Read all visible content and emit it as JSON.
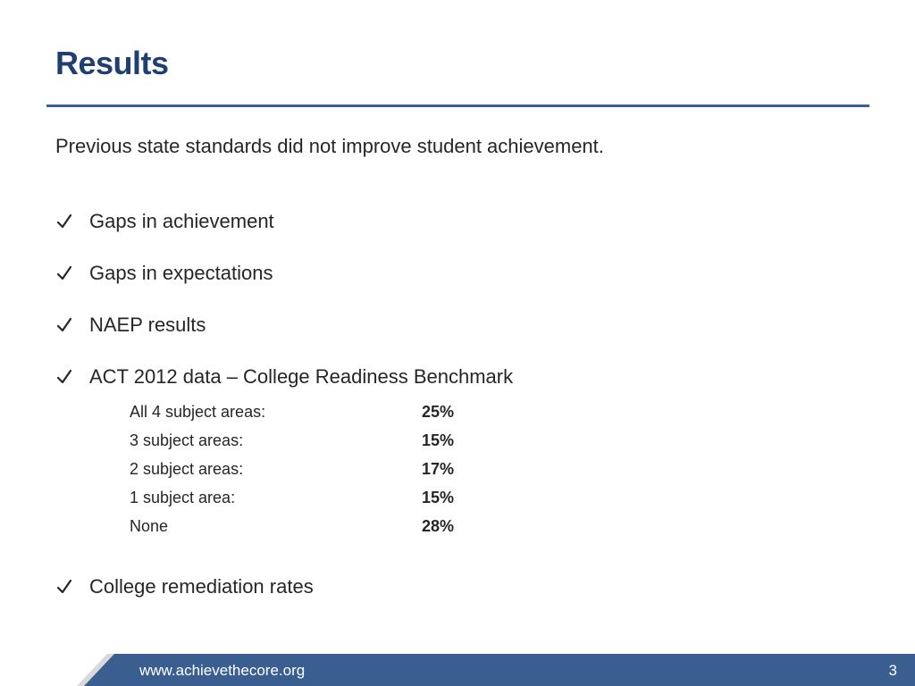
{
  "slide": {
    "title": "Results",
    "intro": "Previous state standards did not improve student achievement."
  },
  "checklist": [
    {
      "label": "Gaps in achievement",
      "icon": "checkmark-icon"
    },
    {
      "label": "Gaps in expectations",
      "icon": "checkmark-icon"
    },
    {
      "label": "NAEP results",
      "icon": "checkmark-icon"
    },
    {
      "label": "ACT 2012 data – College Readiness Benchmark",
      "icon": "checkmark-icon"
    },
    {
      "label": "College remediation rates",
      "icon": "checkmark-icon"
    }
  ],
  "act_data": [
    {
      "label": "All 4 subject areas:",
      "value": "25%"
    },
    {
      "label": "3 subject areas:",
      "value": "15%"
    },
    {
      "label": "2 subject areas:",
      "value": "17%"
    },
    {
      "label": "1 subject area:",
      "value": "15%"
    },
    {
      "label": "None",
      "value": "28%"
    }
  ],
  "footer": {
    "url": "www.achievethecore.org",
    "page_number": "3"
  },
  "colors": {
    "title": "#1f3f73",
    "rule": "#3c5f92",
    "footer_bar": "#3b5e91",
    "footer_accent": "#d9d9d9"
  }
}
